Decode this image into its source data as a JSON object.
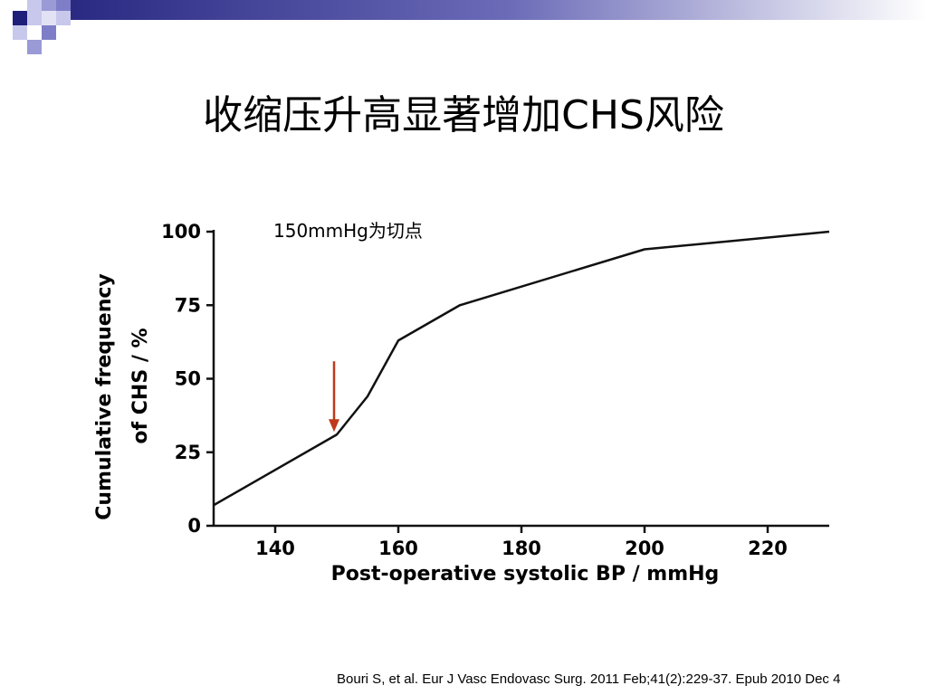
{
  "slide": {
    "title": "收缩压升高显著增加CHS风险",
    "citation": "Bouri S, et al. Eur J Vasc Endovasc Surg. 2011 Feb;41(2):229-37. Epub 2010 Dec 4"
  },
  "colors": {
    "accent_dark": "#1f1f7a",
    "accent_mid": "#7e7ec8",
    "accent_light": "#c8c8ec",
    "arrow": "#c0391b"
  },
  "chart_data": {
    "type": "line",
    "xlabel": "Post-operative systolic BP / mmHg",
    "ylabel_lines": [
      "Cumulative frequency",
      "of CHS / %"
    ],
    "xlim": [
      130,
      230
    ],
    "ylim": [
      0,
      100
    ],
    "xticks": [
      140,
      160,
      180,
      200,
      220
    ],
    "yticks": [
      0,
      25,
      50,
      75,
      100
    ],
    "x": [
      130,
      150,
      155,
      160,
      170,
      200,
      230
    ],
    "y": [
      7,
      31,
      44,
      63,
      75,
      94,
      100
    ],
    "annotation": {
      "text": "150mmHg为切点",
      "x": 150
    }
  }
}
